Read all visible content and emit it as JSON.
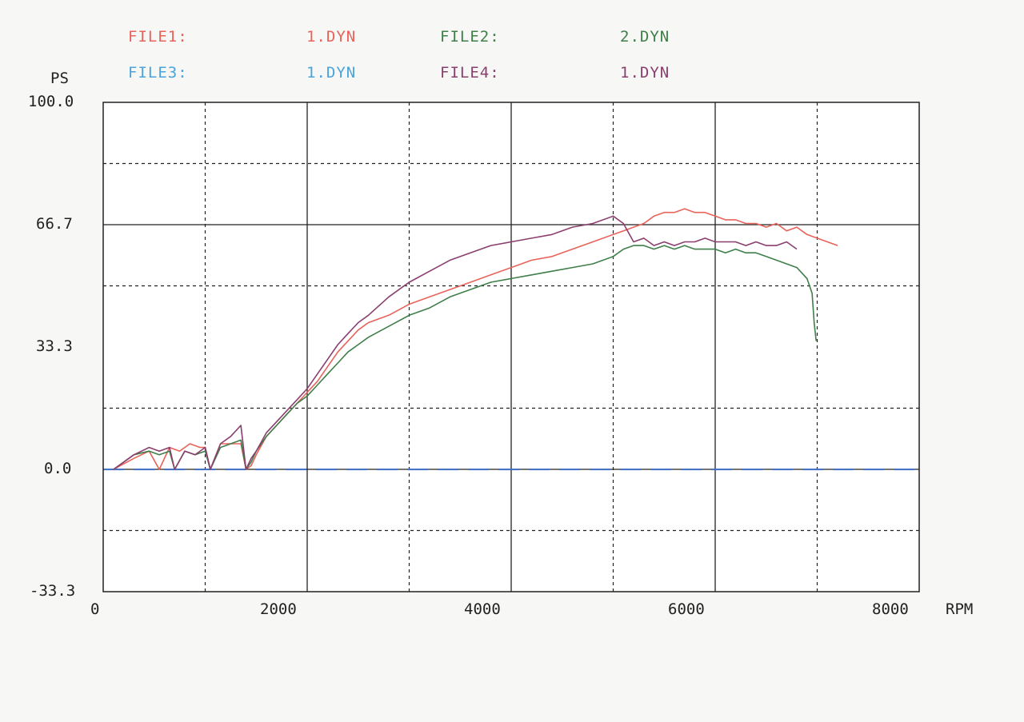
{
  "legend": [
    {
      "label": "FILE1:",
      "file": "1.DYN",
      "color": "#e8635a"
    },
    {
      "label": "FILE2:",
      "file": "2.DYN",
      "color": "#3f7f4a"
    },
    {
      "label": "FILE3:",
      "file": "1.DYN",
      "color": "#4aa3dc"
    },
    {
      "label": "FILE4:",
      "file": "1.DYN",
      "color": "#8a3f6f"
    }
  ],
  "chart_data": {
    "type": "line",
    "ylabel": "PS",
    "xlabel": "RPM",
    "xlim": [
      0,
      8000
    ],
    "ylim": [
      -33.3,
      100.0
    ],
    "x_ticks": [
      "0",
      "2000",
      "4000",
      "6000",
      "8000"
    ],
    "y_ticks": [
      "100.0",
      "66.7",
      "33.3",
      "0.0",
      "-33.3"
    ],
    "grid": true,
    "zero_line_color": "#3f6fc6",
    "series": [
      {
        "name": "FILE1",
        "color": "#e8635a",
        "x": [
          100,
          300,
          450,
          550,
          650,
          750,
          850,
          950,
          1000,
          1050,
          1150,
          1250,
          1350,
          1400,
          1450,
          1500,
          1600,
          1700,
          1800,
          1900,
          2000,
          2100,
          2200,
          2300,
          2400,
          2500,
          2600,
          2800,
          3000,
          3200,
          3400,
          3600,
          3800,
          4000,
          4200,
          4400,
          4600,
          4800,
          5000,
          5100,
          5200,
          5300,
          5400,
          5500,
          5600,
          5700,
          5800,
          5900,
          6000,
          6100,
          6200,
          6300,
          6400,
          6500,
          6600,
          6700,
          6800,
          6900,
          7000,
          7100,
          7200
        ],
        "y": [
          0,
          3,
          5,
          0,
          6,
          5,
          7,
          6,
          6,
          0,
          7,
          7,
          7,
          0,
          1,
          4,
          9,
          12,
          15,
          18,
          21,
          24,
          28,
          32,
          35,
          38,
          40,
          42,
          45,
          47,
          49,
          51,
          53,
          55,
          57,
          58,
          60,
          62,
          64,
          65,
          66,
          67,
          69,
          70,
          70,
          71,
          70,
          70,
          69,
          68,
          68,
          67,
          67,
          66,
          67,
          65,
          66,
          64,
          63,
          62,
          61
        ]
      },
      {
        "name": "FILE2",
        "color": "#3f7f4a",
        "x": [
          100,
          300,
          450,
          550,
          650,
          700,
          800,
          900,
          1000,
          1050,
          1150,
          1250,
          1350,
          1400,
          1450,
          1500,
          1600,
          1700,
          1800,
          1900,
          2000,
          2100,
          2200,
          2300,
          2400,
          2500,
          2600,
          2800,
          3000,
          3200,
          3400,
          3600,
          3800,
          4000,
          4200,
          4400,
          4600,
          4800,
          5000,
          5100,
          5200,
          5300,
          5400,
          5500,
          5600,
          5700,
          5800,
          5900,
          6000,
          6100,
          6200,
          6300,
          6400,
          6500,
          6600,
          6700,
          6800,
          6900,
          6950,
          6970,
          6990
        ],
        "y": [
          0,
          4,
          5,
          4,
          5,
          0,
          5,
          4,
          5,
          0,
          6,
          7,
          8,
          0,
          2,
          5,
          9,
          12,
          15,
          18,
          20,
          23,
          26,
          29,
          32,
          34,
          36,
          39,
          42,
          44,
          47,
          49,
          51,
          52,
          53,
          54,
          55,
          56,
          58,
          60,
          61,
          61,
          60,
          61,
          60,
          61,
          60,
          60,
          60,
          59,
          60,
          59,
          59,
          58,
          57,
          56,
          55,
          52,
          48,
          40,
          35
        ]
      },
      {
        "name": "FILE4",
        "color": "#8a3f6f",
        "x": [
          100,
          300,
          450,
          550,
          650,
          700,
          800,
          900,
          1000,
          1050,
          1150,
          1250,
          1350,
          1400,
          1450,
          1500,
          1600,
          1700,
          1800,
          1900,
          2000,
          2100,
          2200,
          2300,
          2400,
          2500,
          2600,
          2800,
          3000,
          3200,
          3400,
          3600,
          3800,
          4000,
          4200,
          4400,
          4600,
          4800,
          5000,
          5100,
          5200,
          5300,
          5400,
          5500,
          5600,
          5700,
          5800,
          5900,
          6000,
          6100,
          6200,
          6300,
          6400,
          6500,
          6600,
          6700,
          6800
        ],
        "y": [
          0,
          4,
          6,
          5,
          6,
          0,
          5,
          4,
          6,
          0,
          7,
          9,
          12,
          0,
          3,
          5,
          10,
          13,
          16,
          19,
          22,
          26,
          30,
          34,
          37,
          40,
          42,
          47,
          51,
          54,
          57,
          59,
          61,
          62,
          63,
          64,
          66,
          67,
          69,
          67,
          62,
          63,
          61,
          62,
          61,
          62,
          62,
          63,
          62,
          62,
          62,
          61,
          62,
          61,
          61,
          62,
          60
        ]
      }
    ]
  }
}
